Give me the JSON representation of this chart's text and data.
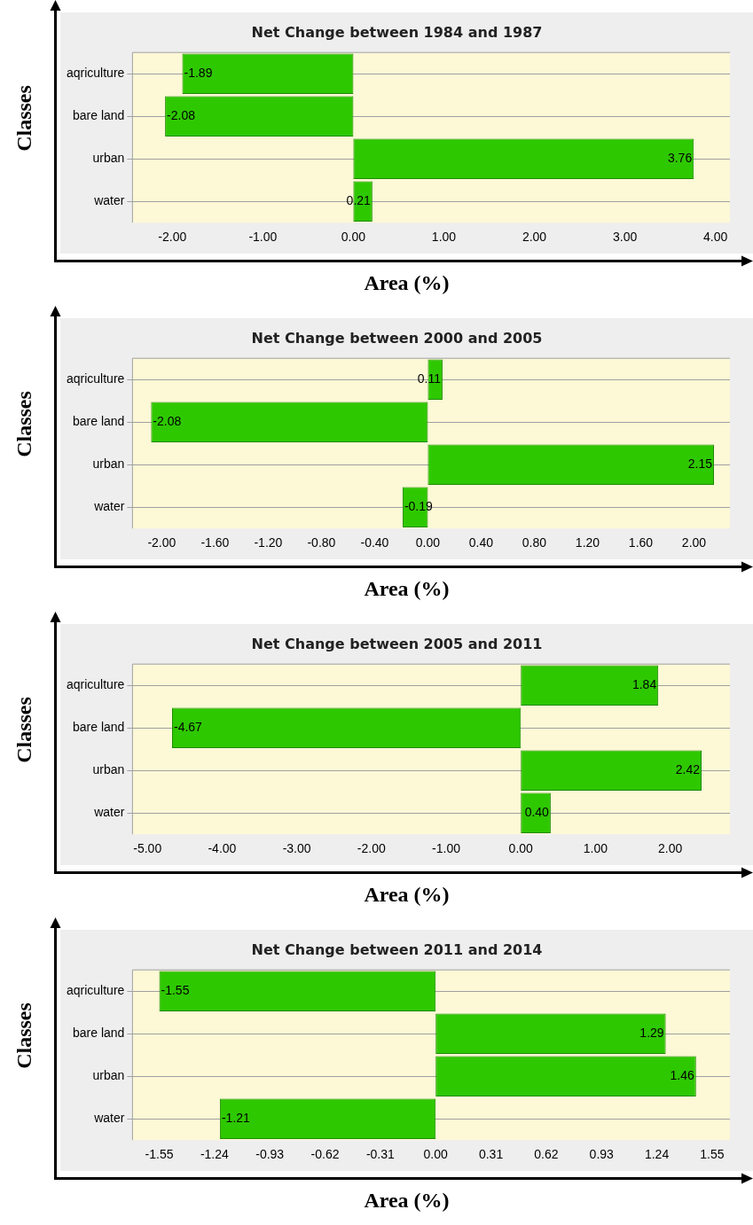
{
  "chart_data": [
    {
      "type": "bar",
      "orientation": "horizontal",
      "title": "Net Change between 1984 and 1987",
      "xlabel": "Area (%)",
      "ylabel": "Classes",
      "categories": [
        "aqriculture",
        "bare land",
        "urban",
        "water"
      ],
      "values": [
        -1.89,
        -2.08,
        3.76,
        0.21
      ],
      "color": "#2ec800",
      "data_labels": true,
      "grid": "y",
      "legend": false,
      "xlim": [
        -2.44,
        4.16
      ],
      "xticks": [
        {
          "value": -2,
          "label": "-2.00"
        },
        {
          "value": -1,
          "label": "-1.00"
        },
        {
          "value": 0,
          "label": "0.00"
        },
        {
          "value": 1,
          "label": "1.00"
        },
        {
          "value": 2,
          "label": "2.00"
        },
        {
          "value": 3,
          "label": "3.00"
        },
        {
          "value": 4,
          "label": "4.00"
        }
      ]
    },
    {
      "type": "bar",
      "orientation": "horizontal",
      "title": "Net Change between 2000 and 2005",
      "xlabel": "Area (%)",
      "ylabel": "Classes",
      "categories": [
        "aqriculture",
        "bare land",
        "urban",
        "water"
      ],
      "values": [
        0.11,
        -2.08,
        2.15,
        -0.19
      ],
      "color": "#2ec800",
      "data_labels": true,
      "grid": "y",
      "legend": false,
      "xlim": [
        -2.22,
        2.27
      ],
      "xticks": [
        {
          "value": -2,
          "label": "-2.00"
        },
        {
          "value": -1.6,
          "label": "-1.60"
        },
        {
          "value": -1.2,
          "label": "-1.20"
        },
        {
          "value": -0.8,
          "label": "-0.80"
        },
        {
          "value": -0.4,
          "label": "-0.40"
        },
        {
          "value": 0,
          "label": "0.00"
        },
        {
          "value": 0.4,
          "label": "0.40"
        },
        {
          "value": 0.8,
          "label": "0.80"
        },
        {
          "value": 1.2,
          "label": "1.20"
        },
        {
          "value": 1.6,
          "label": "1.60"
        },
        {
          "value": 2,
          "label": "2.00"
        }
      ]
    },
    {
      "type": "bar",
      "orientation": "horizontal",
      "title": "Net Change between 2005 and 2011",
      "xlabel": "Area (%)",
      "ylabel": "Classes",
      "categories": [
        "aqriculture",
        "bare land",
        "urban",
        "water"
      ],
      "values": [
        1.84,
        -4.67,
        2.42,
        0.4
      ],
      "value_labels": [
        "1.84",
        "-4.67",
        "2.42",
        "0.40"
      ],
      "color": "#2ec800",
      "grid": "y",
      "legend": false,
      "xlim": [
        -5.2,
        2.8
      ],
      "xticks": [
        {
          "value": -5,
          "label": "-5.00"
        },
        {
          "value": -4,
          "label": "-4.00"
        },
        {
          "value": -3,
          "label": "-3.00"
        },
        {
          "value": -2,
          "label": "-2.00"
        },
        {
          "value": -1,
          "label": "-1.00"
        },
        {
          "value": 0,
          "label": "0.00"
        },
        {
          "value": 1,
          "label": "1.00"
        },
        {
          "value": 2,
          "label": "2.00"
        }
      ]
    },
    {
      "type": "bar",
      "orientation": "horizontal",
      "title": "Net Change between 2011 and 2014",
      "xlabel": "Area (%)",
      "ylabel": "Classes",
      "categories": [
        "aqriculture",
        "bare land",
        "urban",
        "water"
      ],
      "values": [
        -1.55,
        1.29,
        1.46,
        -1.21
      ],
      "color": "#2ec800",
      "data_labels": true,
      "grid": "y",
      "legend": false,
      "xlim": [
        -1.7,
        1.65
      ],
      "xticks": [
        {
          "value": -1.55,
          "label": "-1.55"
        },
        {
          "value": -1.24,
          "label": "-1.24"
        },
        {
          "value": -0.93,
          "label": "-0.93"
        },
        {
          "value": -0.62,
          "label": "-0.62"
        },
        {
          "value": -0.31,
          "label": "-0.31"
        },
        {
          "value": 0,
          "label": "0.00"
        },
        {
          "value": 0.31,
          "label": "0.31"
        },
        {
          "value": 0.62,
          "label": "0.62"
        },
        {
          "value": 0.93,
          "label": "0.93"
        },
        {
          "value": 1.24,
          "label": "1.24"
        },
        {
          "value": 1.55,
          "label": "1.55"
        }
      ]
    }
  ]
}
